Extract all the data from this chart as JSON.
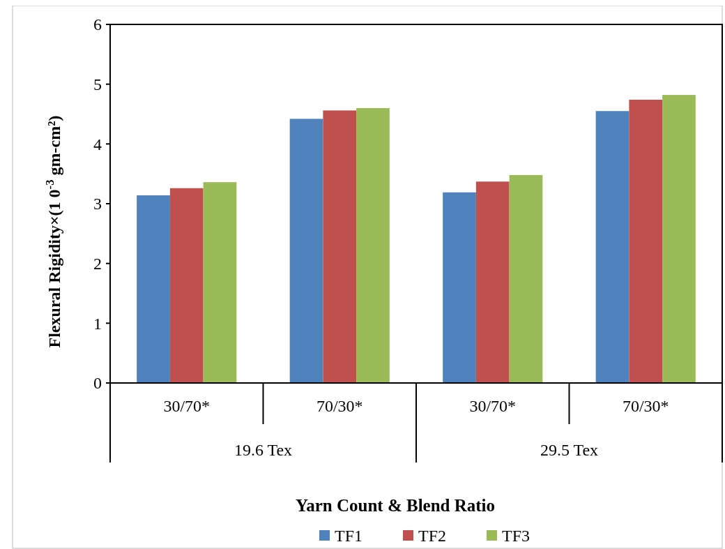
{
  "chart_data": {
    "type": "bar",
    "xlabel": "Yarn Count & Blend Ratio",
    "ylabel": "Flexural Rigidity×(1 0$^{-3}$ gm-cm²)",
    "categories": [
      "30/70*",
      "70/30*",
      "30/70*",
      "70/30*"
    ],
    "annotations": [
      "19.6 Tex",
      "29.5 Tex"
    ],
    "series": [
      {
        "name": "TF1",
        "color": "#4f81bd",
        "values": [
          3.14,
          4.42,
          3.19,
          4.55
        ]
      },
      {
        "name": "TF2",
        "color": "#c0504d",
        "values": [
          3.26,
          4.56,
          3.37,
          4.74
        ]
      },
      {
        "name": "TF3",
        "color": "#9bbb59",
        "values": [
          3.36,
          4.6,
          3.48,
          4.82
        ]
      }
    ],
    "ylim": [
      0,
      6
    ],
    "yticks": [
      0,
      1,
      2,
      3,
      4,
      5,
      6
    ],
    "legend": "bottom"
  }
}
